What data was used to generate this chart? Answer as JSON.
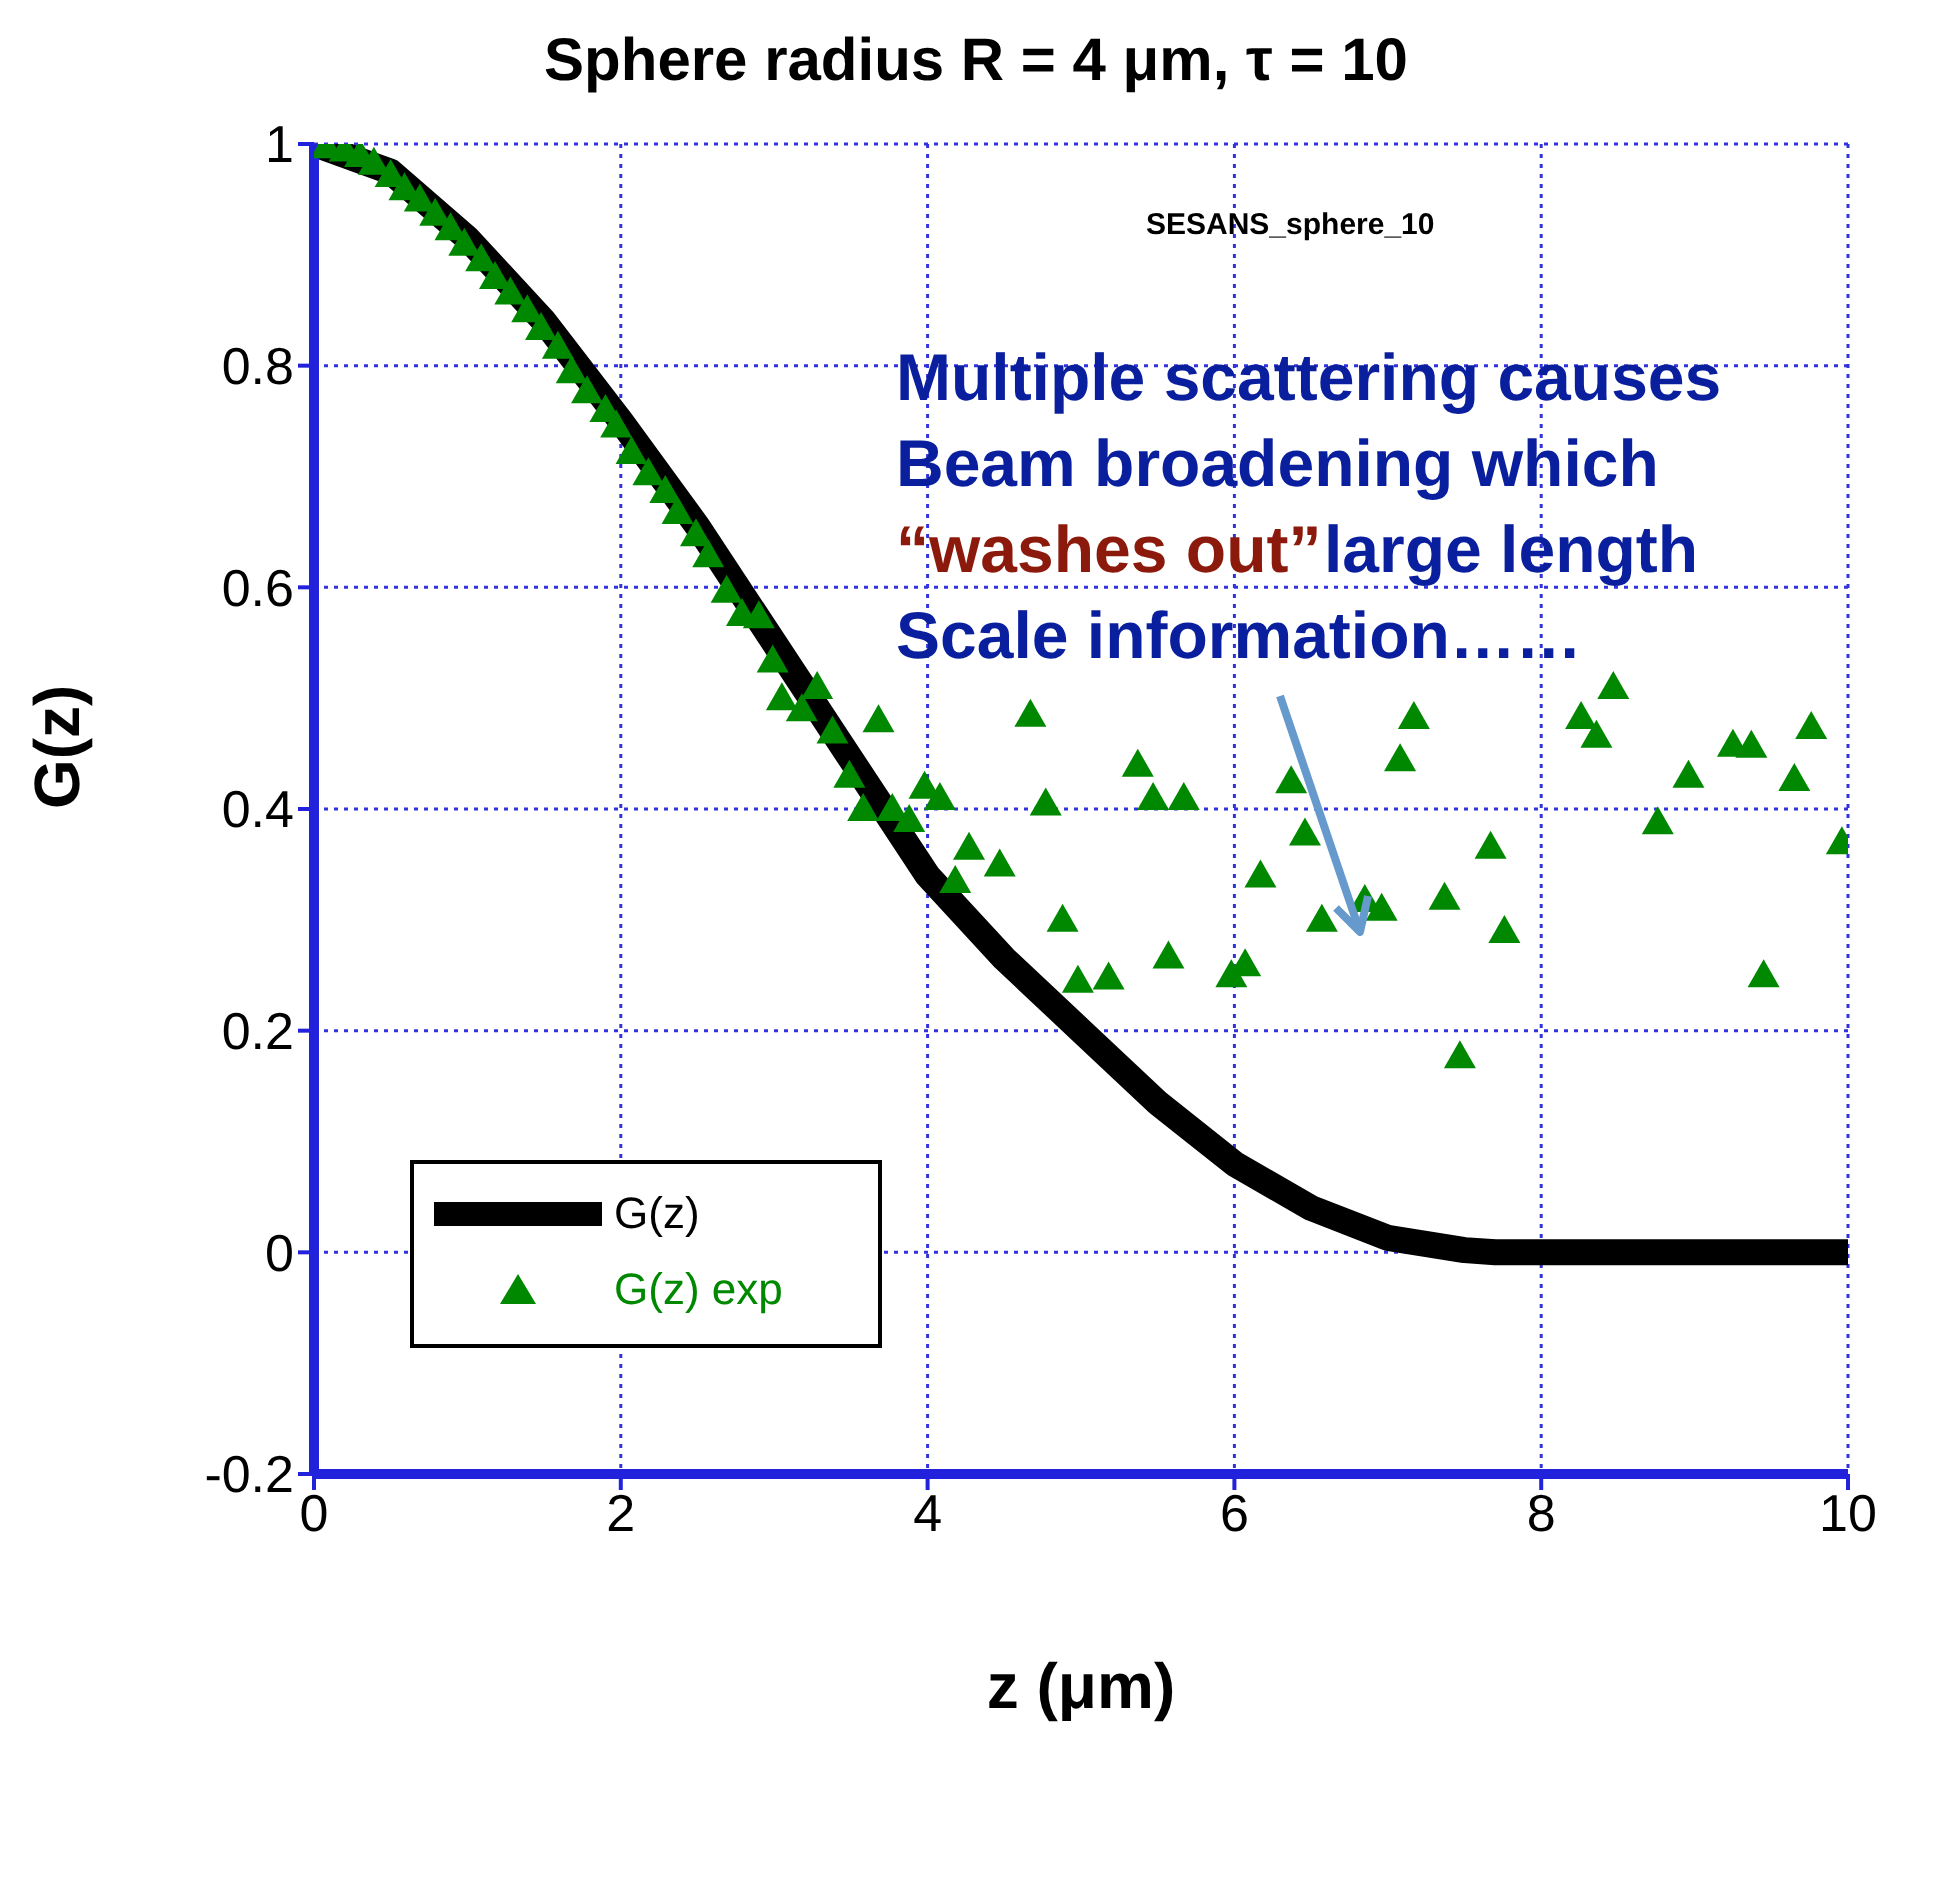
{
  "chart_data": {
    "type": "line",
    "title": "Sphere radius R = 4 μm, τ = 10",
    "xlabel": "z (μm)",
    "ylabel": "G(z)",
    "xlim": [
      0,
      10
    ],
    "xticks": [
      0,
      2,
      4,
      6,
      8,
      10
    ],
    "ylim": [
      -0.2,
      1
    ],
    "yticks": [
      -0.2,
      0,
      0.2,
      0.4,
      0.6,
      0.8,
      1
    ],
    "grid": true,
    "legend": "bottom left",
    "annotations": [
      "SESANS_sphere_10",
      "Multiple scattering causes",
      "Beam broadening which",
      "“washes out”",
      "large length",
      "Scale information……"
    ],
    "series": [
      {
        "name": "G(z)",
        "color": "#000000",
        "line_style": "solid",
        "marker": "none",
        "x": [
          0,
          0.5,
          1,
          1.5,
          2,
          2.5,
          3,
          3.5,
          4,
          4.5,
          5,
          5.5,
          6,
          6.5,
          7,
          7.5,
          7.7,
          8,
          9,
          10
        ],
        "values": [
          1,
          0.975,
          0.915,
          0.84,
          0.75,
          0.655,
          0.55,
          0.445,
          0.34,
          0.265,
          0.2,
          0.135,
          0.08,
          0.04,
          0.013,
          0.002,
          0,
          0,
          0,
          0
        ]
      },
      {
        "name": "G(z) exp",
        "type": "scatter",
        "color": "#008800",
        "marker": "triangle",
        "x": [
          0.08,
          0.2,
          0.3,
          0.39,
          0.5,
          0.59,
          0.69,
          0.79,
          0.89,
          0.98,
          1.09,
          1.18,
          1.28,
          1.39,
          1.48,
          1.59,
          1.68,
          1.78,
          1.9,
          1.97,
          2.07,
          2.18,
          2.29,
          2.37,
          2.49,
          2.57,
          2.69,
          2.79,
          2.9,
          2.99,
          3.05,
          3.18,
          3.28,
          3.38,
          3.49,
          3.58,
          3.68,
          3.77,
          3.88,
          3.98,
          4.08,
          4.18,
          4.27,
          4.47,
          4.67,
          4.77,
          4.88,
          4.98,
          5.18,
          5.37,
          5.47,
          5.57,
          5.67,
          5.98,
          6.07,
          6.17,
          6.37,
          6.46,
          6.57,
          6.85,
          6.96,
          7.08,
          7.17,
          7.37,
          7.47,
          7.67,
          7.76,
          8.26,
          8.36,
          8.47,
          8.76,
          8.96,
          9.25,
          9.37,
          9.45,
          9.65,
          9.76,
          9.96
        ],
        "values": [
          0.998,
          0.995,
          0.99,
          0.983,
          0.972,
          0.96,
          0.95,
          0.937,
          0.924,
          0.91,
          0.896,
          0.88,
          0.866,
          0.85,
          0.834,
          0.817,
          0.795,
          0.777,
          0.76,
          0.746,
          0.722,
          0.703,
          0.687,
          0.668,
          0.648,
          0.629,
          0.597,
          0.576,
          0.574,
          0.534,
          0.5,
          0.49,
          0.51,
          0.47,
          0.43,
          0.4,
          0.48,
          0.4,
          0.39,
          0.42,
          0.41,
          0.335,
          0.365,
          0.35,
          0.485,
          0.405,
          0.3,
          0.245,
          0.248,
          0.44,
          0.41,
          0.267,
          0.41,
          0.25,
          0.26,
          0.34,
          0.425,
          0.378,
          0.3,
          0.318,
          0.31,
          0.445,
          0.483,
          0.32,
          0.177,
          0.366,
          0.29,
          0.483,
          0.466,
          0.51,
          0.388,
          0.43,
          0.458,
          0.457,
          0.25,
          0.427,
          0.474,
          0.37
        ]
      }
    ]
  }
}
